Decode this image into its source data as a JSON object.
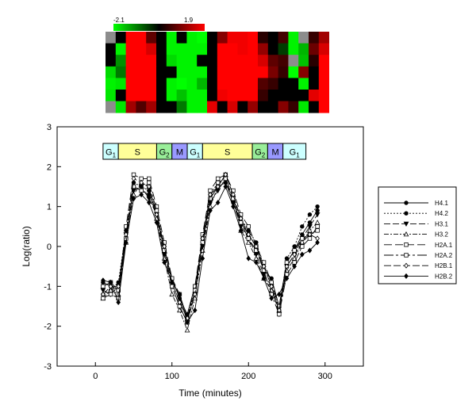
{
  "heatmap": {
    "scale_min_label": "-2.1",
    "scale_max_label": "1.9",
    "colors": {
      "low": "#00ff00",
      "mid": "#000000",
      "high": "#ff0000",
      "missing": "#8c8c8c"
    },
    "rows": [
      [
        null,
        0.0,
        1.9,
        1.9,
        0.7,
        0.0,
        -2.0,
        0.0,
        -2.0,
        -2.1,
        0.0,
        1.0,
        1.8,
        1.8,
        1.9,
        0.3,
        0.0,
        0.5,
        -2.0,
        null,
        0.4,
        1.2
      ],
      [
        0.0,
        -2.0,
        1.9,
        1.9,
        1.6,
        0.0,
        -2.0,
        -2.0,
        -2.0,
        -2.0,
        0.0,
        1.9,
        1.9,
        1.8,
        1.9,
        1.1,
        0.0,
        -0.5,
        -2.0,
        -1.5,
        0.8,
        1.6
      ],
      [
        0.0,
        -1.2,
        1.9,
        1.9,
        1.9,
        0.0,
        -1.8,
        -2.0,
        -2.0,
        0.0,
        0.0,
        1.9,
        1.9,
        1.9,
        1.9,
        1.6,
        0.7,
        0.5,
        null,
        -1.6,
        0.3,
        1.9
      ],
      [
        -1.8,
        -1.0,
        1.9,
        1.9,
        1.9,
        0.0,
        0.0,
        -2.0,
        -2.0,
        -2.0,
        0.0,
        1.9,
        1.9,
        1.9,
        1.9,
        1.9,
        0.9,
        0.4,
        -2.1,
        1.0,
        0.0,
        1.9
      ],
      [
        -2.0,
        -1.9,
        1.9,
        1.9,
        1.9,
        0.0,
        -2.0,
        -2.1,
        -2.0,
        -1.5,
        0.0,
        1.9,
        1.9,
        1.9,
        1.9,
        0.6,
        0.4,
        0.0,
        0.0,
        -2.0,
        0.0,
        1.9
      ],
      [
        -1.9,
        0.0,
        1.9,
        1.9,
        1.9,
        0.0,
        -2.0,
        -1.6,
        -2.0,
        -2.0,
        0.0,
        1.8,
        1.9,
        1.9,
        1.9,
        0.4,
        0.0,
        0.0,
        0.0,
        0.0,
        1.7,
        1.9
      ],
      [
        null,
        -1.9,
        1.2,
        0.6,
        1.2,
        0.0,
        0.0,
        -1.0,
        -2.0,
        -2.0,
        1.7,
        0.0,
        1.6,
        0.0,
        1.1,
        0.0,
        0.0,
        1.0,
        0.4,
        -1.9,
        0.0,
        1.9
      ]
    ]
  },
  "phases": [
    {
      "label": "G",
      "sub": "1",
      "start": 10,
      "end": 30,
      "color": "#ccffff"
    },
    {
      "label": "S",
      "sub": "",
      "start": 30,
      "end": 80,
      "color": "#ffff99"
    },
    {
      "label": "G",
      "sub": "2",
      "start": 80,
      "end": 100,
      "color": "#99ee99"
    },
    {
      "label": "M",
      "sub": "",
      "start": 100,
      "end": 120,
      "color": "#9999ff"
    },
    {
      "label": "G",
      "sub": "1",
      "start": 120,
      "end": 140,
      "color": "#ccffff"
    },
    {
      "label": "S",
      "sub": "",
      "start": 140,
      "end": 205,
      "color": "#ffff99"
    },
    {
      "label": "G",
      "sub": "2",
      "start": 205,
      "end": 225,
      "color": "#99ee99"
    },
    {
      "label": "M",
      "sub": "",
      "start": 225,
      "end": 245,
      "color": "#9999ff"
    },
    {
      "label": "G",
      "sub": "1",
      "start": 245,
      "end": 275,
      "color": "#ccffff"
    }
  ],
  "chart_data": {
    "type": "line",
    "xlabel": "Time (minutes)",
    "ylabel": "Log(ratio)",
    "xlim": [
      -50,
      350
    ],
    "ylim": [
      -3,
      3
    ],
    "xticks": [
      0,
      100,
      200,
      300
    ],
    "yticks": [
      -3,
      -2,
      -1,
      0,
      1,
      2,
      3
    ],
    "grid": false,
    "legend_position": "right",
    "x": [
      10,
      20,
      30,
      40,
      50,
      60,
      70,
      80,
      90,
      100,
      110,
      120,
      130,
      140,
      150,
      160,
      170,
      180,
      190,
      200,
      210,
      220,
      230,
      240,
      250,
      260,
      270,
      280,
      290
    ],
    "series": [
      {
        "name": "H4.1",
        "dash": "",
        "marker": "circle",
        "values": [
          -0.9,
          -1.0,
          -1.1,
          0.2,
          1.5,
          1.4,
          1.3,
          0.8,
          -0.1,
          -0.8,
          -1.3,
          -1.7,
          -1.0,
          0.1,
          1.2,
          1.5,
          1.6,
          1.1,
          0.6,
          0.3,
          0.0,
          -0.6,
          -0.8,
          -1.5,
          -0.4,
          -0.1,
          0.3,
          0.6,
          0.9
        ]
      },
      {
        "name": "H4.2",
        "dash": "2,2",
        "marker": "circle",
        "values": [
          -1.2,
          -1.1,
          -0.9,
          0.4,
          1.6,
          1.5,
          1.4,
          0.9,
          0.0,
          -0.9,
          -1.4,
          -1.8,
          -1.1,
          0.2,
          1.3,
          1.6,
          1.7,
          1.2,
          0.7,
          0.4,
          0.1,
          -0.5,
          -0.9,
          -1.6,
          -0.3,
          0.0,
          0.5,
          0.8,
          1.0
        ]
      },
      {
        "name": "H3.1",
        "dash": "8,3",
        "marker": "triangle-down",
        "values": [
          -1.1,
          -1.2,
          -1.0,
          0.3,
          1.4,
          1.5,
          1.2,
          0.8,
          -0.2,
          -1.0,
          -1.5,
          -1.9,
          -1.2,
          0.0,
          1.1,
          1.4,
          1.7,
          1.1,
          0.5,
          0.2,
          -0.2,
          -0.7,
          -1.0,
          -1.7,
          -0.5,
          -0.2,
          0.2,
          0.5,
          0.8
        ]
      },
      {
        "name": "H3.2",
        "dash": "6,2,2,2",
        "marker": "triangle-up",
        "values": [
          -1.3,
          -1.1,
          -1.2,
          0.1,
          1.3,
          1.6,
          1.5,
          0.7,
          -0.3,
          -1.2,
          -1.6,
          -2.1,
          -1.3,
          -0.1,
          1.0,
          1.5,
          1.8,
          1.3,
          0.4,
          0.1,
          -0.3,
          -0.8,
          -1.1,
          -1.6,
          -0.6,
          -0.3,
          0.1,
          0.4,
          0.6
        ]
      },
      {
        "name": "H2A.1",
        "dash": "10,4",
        "marker": "square",
        "values": [
          -1.0,
          -0.9,
          -1.1,
          0.5,
          1.8,
          1.7,
          1.7,
          1.0,
          0.1,
          -0.8,
          -1.2,
          -1.8,
          -1.0,
          0.3,
          1.4,
          1.7,
          1.8,
          1.4,
          0.8,
          0.5,
          0.0,
          -0.4,
          -0.9,
          -1.5,
          -0.4,
          -0.1,
          0.2,
          0.3,
          0.4
        ]
      },
      {
        "name": "H2A.2",
        "dash": "12,3,3,3",
        "marker": "square",
        "values": [
          -1.3,
          -1.2,
          -1.3,
          0.2,
          1.5,
          1.4,
          1.6,
          0.9,
          -0.1,
          -1.0,
          -1.5,
          -1.9,
          -1.1,
          0.1,
          1.2,
          1.6,
          1.7,
          1.2,
          0.6,
          0.2,
          -0.1,
          -0.6,
          -1.2,
          -1.7,
          -0.7,
          -0.4,
          0.0,
          0.2,
          0.5
        ]
      },
      {
        "name": "H2B.1",
        "dash": "9,3",
        "marker": "diamond-open",
        "values": [
          -1.2,
          -1.0,
          -1.0,
          0.3,
          1.7,
          1.6,
          1.5,
          0.8,
          0.0,
          -0.9,
          -1.4,
          -1.8,
          -1.2,
          0.2,
          1.3,
          1.5,
          1.8,
          1.3,
          0.7,
          0.3,
          0.0,
          -0.5,
          -1.0,
          -1.6,
          -0.5,
          -0.2,
          0.1,
          0.3,
          0.2
        ]
      },
      {
        "name": "H2B.2",
        "dash": "",
        "marker": "diamond",
        "values": [
          -0.85,
          -0.9,
          -1.4,
          0.1,
          1.2,
          1.3,
          1.1,
          0.6,
          -0.4,
          -0.9,
          -1.2,
          -1.9,
          -1.6,
          -0.3,
          0.9,
          1.1,
          1.5,
          1.0,
          0.4,
          -0.3,
          -0.4,
          -0.8,
          -1.3,
          -1.2,
          -0.8,
          -0.5,
          -0.2,
          -0.1,
          0.1
        ]
      }
    ]
  }
}
